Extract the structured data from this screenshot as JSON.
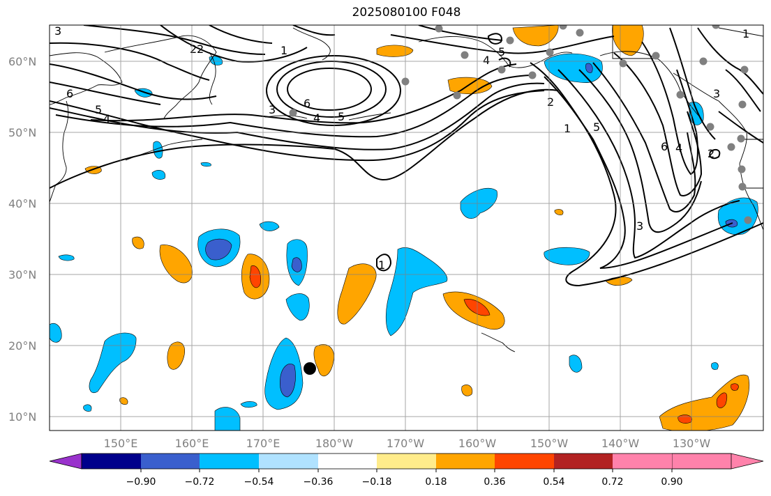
{
  "title": "2025080100 F048",
  "lat_labels": [
    "60°N",
    "50°N",
    "40°N",
    "30°N",
    "20°N",
    "10°N"
  ],
  "lon_labels": [
    "150°E",
    "160°E",
    "170°E",
    "180°W",
    "170°W",
    "160°W",
    "150°W",
    "140°W",
    "130°W"
  ],
  "colorbar": {
    "tick_labels": [
      "−0.90",
      "−0.72",
      "−0.54",
      "−0.36",
      "−0.18",
      "0.18",
      "0.36",
      "0.54",
      "0.72",
      "0.90"
    ],
    "colors": [
      "#9932cc",
      "#00008b",
      "#3a5fcd",
      "#00bfff",
      "#b0e2ff",
      "#ffffff",
      "#ffec8b",
      "#ffa500",
      "#ff4500",
      "#b22222",
      "#ff82ab"
    ]
  },
  "contour_labels": [
    "1",
    "2",
    "3",
    "4",
    "5",
    "6",
    "1",
    "2",
    "3",
    "4",
    "5",
    "6",
    "5",
    "4",
    "1",
    "2",
    "3",
    "5",
    "6",
    "4",
    "3",
    "2",
    "1"
  ],
  "colors": {
    "warm": "#ffa500",
    "warm_strong": "#ff4500",
    "cool": "#00bfff",
    "cool_strong": "#3a5fcd",
    "station": "#808080"
  }
}
